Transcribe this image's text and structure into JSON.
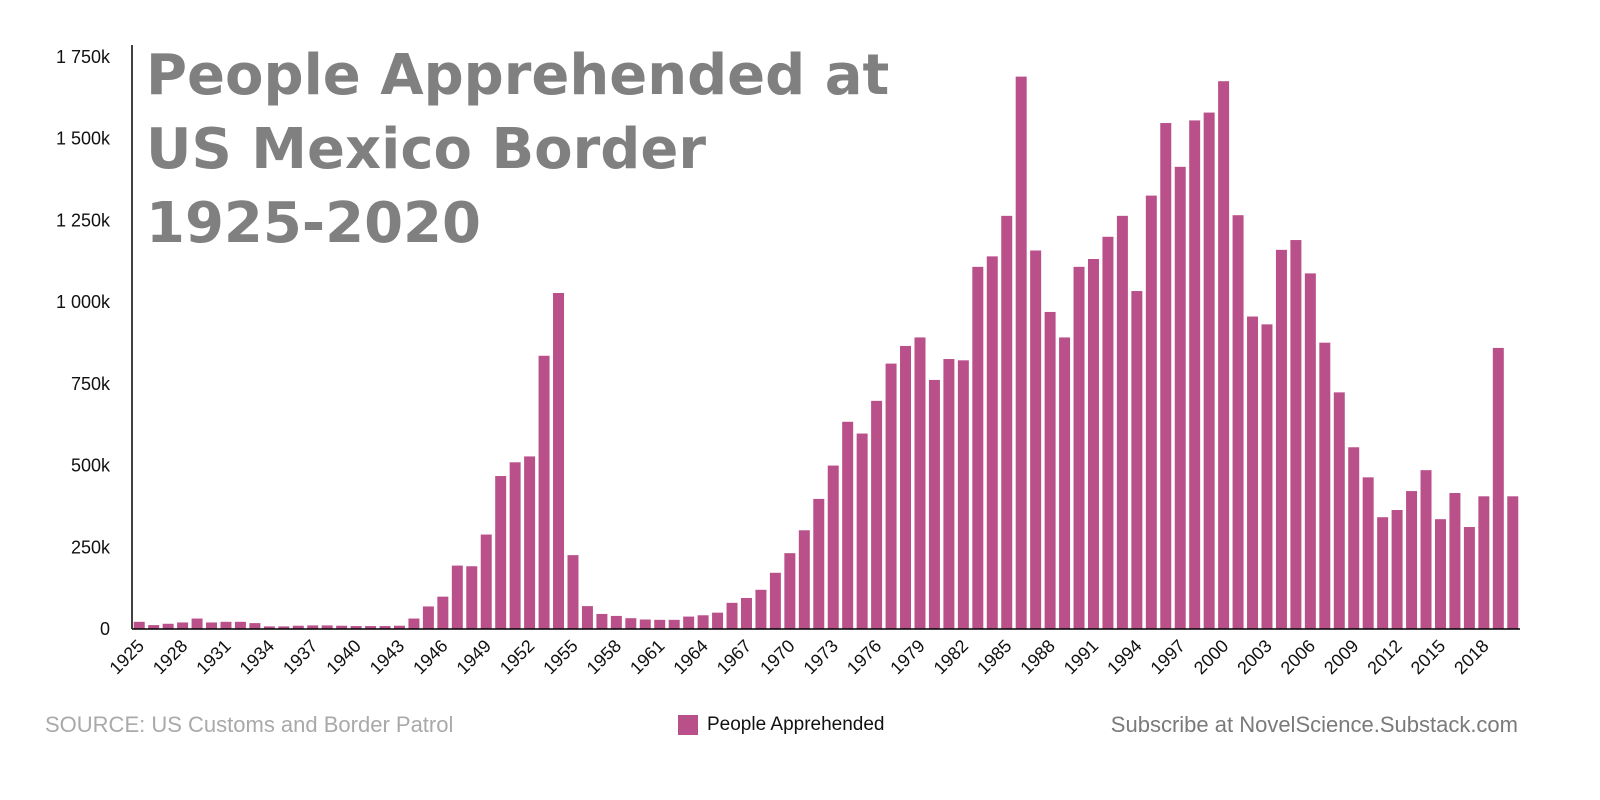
{
  "chart_data": {
    "type": "bar",
    "title": [
      "People Apprehended at",
      "US Mexico Border",
      "1925-2020"
    ],
    "xlabel": "",
    "ylabel": "",
    "ylim": [
      0,
      1750000
    ],
    "yticks": [
      0,
      250000,
      500000,
      750000,
      1000000,
      1250000,
      1500000,
      1750000
    ],
    "ytick_labels": [
      "0",
      "250k",
      "500k",
      "750k",
      "1 000k",
      "1 250k",
      "1 500k",
      "1 750k"
    ],
    "xtick_labels": [
      "1925",
      "1928",
      "1931",
      "1934",
      "1937",
      "1940",
      "1943",
      "1946",
      "1949",
      "1952",
      "1955",
      "1958",
      "1961",
      "1964",
      "1967",
      "1970",
      "1973",
      "1976",
      "1979",
      "1982",
      "1985",
      "1988",
      "1991",
      "1994",
      "1997",
      "2000",
      "2003",
      "2006",
      "2009",
      "2012",
      "2015",
      "2018"
    ],
    "categories": [
      "1925",
      "1926",
      "1927",
      "1928",
      "1929",
      "1930",
      "1931",
      "1932",
      "1933",
      "1934",
      "1935",
      "1936",
      "1937",
      "1938",
      "1939",
      "1940",
      "1941",
      "1942",
      "1943",
      "1944",
      "1945",
      "1946",
      "1947",
      "1948",
      "1949",
      "1950",
      "1951",
      "1952",
      "1953",
      "1954",
      "1955",
      "1956",
      "1957",
      "1958",
      "1959",
      "1960",
      "1961",
      "1962",
      "1963",
      "1964",
      "1965",
      "1966",
      "1967",
      "1968",
      "1969",
      "1970",
      "1971",
      "1972",
      "1973",
      "1974",
      "1975",
      "1976",
      "1977",
      "1978",
      "1979",
      "1980",
      "1981",
      "1982",
      "1983",
      "1984",
      "1985",
      "1986",
      "1987",
      "1988",
      "1989",
      "1990",
      "1991",
      "1992",
      "1993",
      "1994",
      "1995",
      "1996",
      "1997",
      "1998",
      "1999",
      "2000",
      "2001",
      "2002",
      "2003",
      "2004",
      "2005",
      "2006",
      "2007",
      "2008",
      "2009",
      "2010",
      "2011",
      "2012",
      "2013",
      "2014",
      "2015",
      "2016",
      "2017",
      "2018",
      "2019",
      "2020"
    ],
    "series": [
      {
        "name": "People Apprehended",
        "color": "#b9508a",
        "values": [
          22000,
          12000,
          16000,
          20000,
          32000,
          20000,
          22000,
          22000,
          18000,
          8000,
          8000,
          10000,
          11000,
          11000,
          10000,
          9000,
          9000,
          9000,
          10000,
          32000,
          69000,
          99000,
          194000,
          192000,
          289000,
          468000,
          510000,
          528000,
          836000,
          1028000,
          226000,
          70000,
          46000,
          40000,
          33000,
          29000,
          28000,
          28000,
          38000,
          42000,
          50000,
          80000,
          95000,
          120000,
          172000,
          232000,
          302000,
          398000,
          500000,
          634000,
          598000,
          698000,
          812000,
          866000,
          892000,
          762000,
          826000,
          822000,
          1108000,
          1140000,
          1264000,
          1690000,
          1158000,
          970000,
          892000,
          1108000,
          1132000,
          1200000,
          1264000,
          1034000,
          1326000,
          1548000,
          1414000,
          1556000,
          1580000,
          1676000,
          1266000,
          956000,
          932000,
          1160000,
          1190000,
          1088000,
          876000,
          724000,
          556000,
          464000,
          342000,
          364000,
          422000,
          486000,
          336000,
          416000,
          312000,
          406000,
          860000,
          406000
        ]
      }
    ],
    "legend": {
      "placement": "bottom-center",
      "label": "People Apprehended"
    },
    "grid": false
  },
  "footer": {
    "source": "SOURCE: US Customs and Border Patrol",
    "subscribe": "Subscribe at NovelScience.Substack.com"
  },
  "colors": {
    "bar": "#b9508a",
    "title": "#808080",
    "axis": "#000000",
    "source_text": "#a9a9a9",
    "subscribe_text": "#7a7a7a"
  }
}
